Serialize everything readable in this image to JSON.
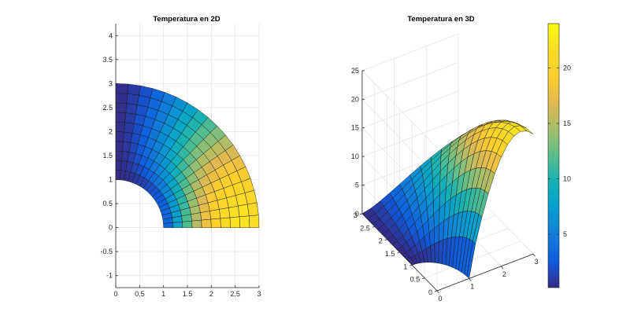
{
  "chart_data": [
    {
      "type": "surface-2d-view",
      "title": "Temperatura en 2D",
      "xlabel": "",
      "ylabel": "",
      "xlim": [
        0,
        3
      ],
      "ylim": [
        -1.25,
        4.25
      ],
      "x_ticks": [
        "0",
        "0.5",
        "1",
        "1.5",
        "2",
        "2.5",
        "3"
      ],
      "y_ticks": [
        "-1",
        "-0.5",
        "0",
        "0.5",
        "1",
        "1.5",
        "2",
        "2.5",
        "3",
        "3.5",
        "4"
      ],
      "grid": true,
      "domain": {
        "shape": "quarter annulus",
        "r_inner": 1,
        "r_outer": 3,
        "theta_deg": [
          0,
          90
        ]
      },
      "mesh": {
        "radial_cells": 10,
        "angular_cells": 18
      }
    },
    {
      "type": "surface-3d",
      "title": "Temperatura en 3D",
      "x_ticks": [
        "0",
        "1",
        "2",
        "3"
      ],
      "y_ticks": [
        "0",
        "0.5",
        "1",
        "1.5",
        "2",
        "2.5",
        "3"
      ],
      "z_ticks": [
        "0",
        "5",
        "10",
        "15",
        "20",
        "25"
      ],
      "xlim": [
        0,
        3
      ],
      "ylim": [
        0,
        3
      ],
      "zlim": [
        0,
        25
      ],
      "temperature_range": [
        0,
        24
      ],
      "colormap": "parula",
      "grid": true,
      "colorbar_ticks": [
        "5",
        "10",
        "15",
        "20"
      ],
      "colorbar_range": [
        0.2,
        24
      ]
    }
  ]
}
